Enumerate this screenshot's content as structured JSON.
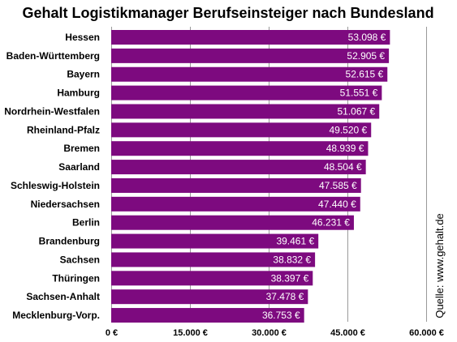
{
  "chart_data": {
    "type": "bar",
    "orientation": "horizontal",
    "title": "Gehalt Logistikmanager Berufseinsteiger nach Bundesland",
    "categories": [
      "Hessen",
      "Baden-Württemberg",
      "Bayern",
      "Hamburg",
      "Nordrhein-Westfalen",
      "Rheinland-Pfalz",
      "Bremen",
      "Saarland",
      "Schleswig-Holstein",
      "Niedersachsen",
      "Berlin",
      "Brandenburg",
      "Sachsen",
      "Thüringen",
      "Sachsen-Anhalt",
      "Mecklenburg-Vorp."
    ],
    "values": [
      53098,
      52905,
      52615,
      51551,
      51067,
      49520,
      48939,
      48504,
      47585,
      47440,
      46231,
      39461,
      38832,
      38397,
      37478,
      36753
    ],
    "value_labels": [
      "53.098 €",
      "52.905 €",
      "52.615 €",
      "51.551 €",
      "51.067 €",
      "49.520 €",
      "48.939 €",
      "48.504 €",
      "47.585 €",
      "47.440 €",
      "46.231 €",
      "39.461 €",
      "38.832 €",
      "38.397 €",
      "37.478 €",
      "36.753 €"
    ],
    "xlim": [
      0,
      60000
    ],
    "xticks": [
      0,
      15000,
      30000,
      45000,
      60000
    ],
    "xtick_labels": [
      "0 €",
      "15.000 €",
      "30.000 €",
      "45.000 €",
      "60.000 €"
    ],
    "grid": true,
    "bar_color": "#7d0a7f",
    "annotation": "Quelle: www.gehalt.de"
  }
}
